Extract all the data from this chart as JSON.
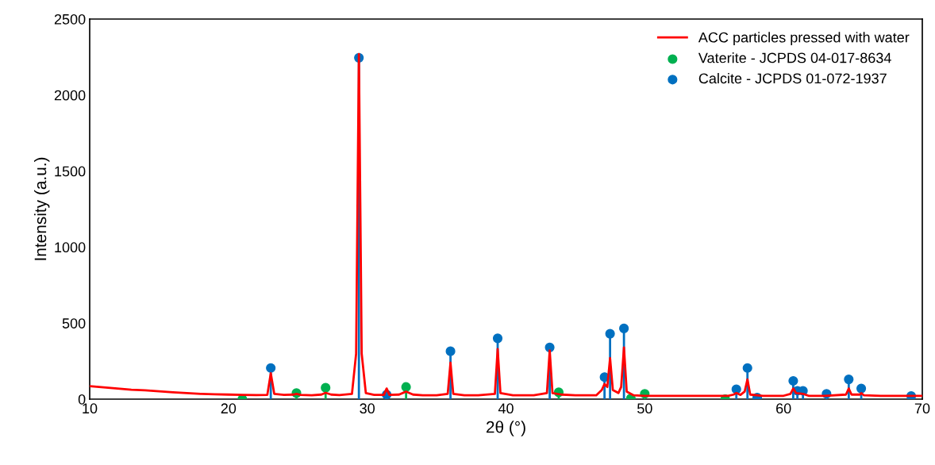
{
  "chart_data": {
    "type": "line",
    "xlabel": "2θ (°)",
    "ylabel": "Intensity (a.u.)",
    "xlim": [
      10,
      70
    ],
    "xticks": [
      10,
      20,
      30,
      40,
      50,
      60,
      70
    ],
    "ylim": [
      0,
      2500
    ],
    "yticks": [
      0,
      500,
      1000,
      1500,
      2000,
      2500
    ],
    "grid": false,
    "legend": "top right",
    "series": [
      {
        "name": "ACC particles pressed with water",
        "color": "#ff0000",
        "marker": "none",
        "x": [
          10,
          11,
          12,
          13,
          14,
          15,
          16,
          17,
          18,
          19,
          20,
          21,
          22,
          22.8,
          23.05,
          23.3,
          24,
          24.7,
          24.9,
          25.2,
          26,
          26.7,
          27,
          27.4,
          28,
          28.9,
          29.2,
          29.4,
          29.6,
          29.9,
          30.5,
          31.2,
          31.4,
          31.6,
          32.3,
          32.8,
          33.3,
          34,
          35,
          35.8,
          36,
          36.2,
          37,
          38,
          39.2,
          39.4,
          39.6,
          40.5,
          42,
          42.95,
          43.15,
          43.35,
          44,
          45,
          46.5,
          46.9,
          47.1,
          47.3,
          47.5,
          47.7,
          48.1,
          48.3,
          48.5,
          48.7,
          49.2,
          50,
          52,
          54,
          56,
          56.4,
          56.6,
          56.9,
          57.2,
          57.4,
          57.6,
          58.5,
          60,
          60.5,
          60.7,
          60.9,
          61.4,
          61.8,
          63,
          64.5,
          64.7,
          64.9,
          65.5,
          65.6,
          65.8,
          67,
          70
        ],
        "values": [
          85,
          78,
          70,
          62,
          58,
          52,
          45,
          40,
          35,
          32,
          30,
          28,
          27,
          28,
          170,
          35,
          28,
          30,
          35,
          28,
          25,
          30,
          42,
          30,
          27,
          35,
          300,
          2270,
          300,
          40,
          28,
          28,
          70,
          28,
          30,
          50,
          30,
          25,
          25,
          35,
          240,
          35,
          25,
          25,
          35,
          330,
          40,
          25,
          25,
          40,
          320,
          40,
          30,
          25,
          25,
          60,
          100,
          80,
          270,
          60,
          40,
          80,
          340,
          50,
          25,
          22,
          22,
          22,
          22,
          30,
          40,
          28,
          50,
          130,
          30,
          22,
          22,
          35,
          70,
          40,
          35,
          22,
          22,
          30,
          70,
          30,
          30,
          40,
          25,
          22,
          22
        ]
      },
      {
        "name": "Vaterite - JCPDS 04-017-8634",
        "type": "lollipop",
        "color": "#00b050",
        "marker": "circle",
        "x": [
          21,
          24.9,
          27,
          32.8,
          43.8,
          49,
          50,
          55.8
        ],
        "values": [
          0,
          40,
          75,
          80,
          45,
          5,
          35,
          0
        ]
      },
      {
        "name": "Calcite - JCPDS 01-072-1937",
        "type": "lollipop",
        "color": "#0070c0",
        "marker": "circle",
        "x": [
          23.05,
          29.4,
          31.4,
          36,
          39.4,
          43.15,
          47.1,
          47.5,
          48.5,
          56.6,
          57.4,
          58.1,
          60.7,
          61.0,
          61.4,
          63.1,
          64.7,
          65.6,
          69.2
        ],
        "values": [
          205,
          2245,
          30,
          315,
          400,
          340,
          145,
          430,
          465,
          65,
          205,
          10,
          120,
          55,
          55,
          35,
          130,
          70,
          20
        ]
      }
    ]
  }
}
